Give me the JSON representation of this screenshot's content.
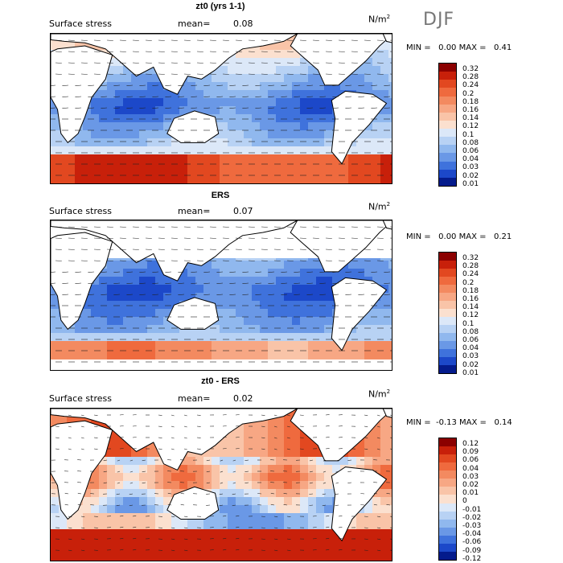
{
  "season": "DJF",
  "panels": [
    {
      "title": "zt0 (yrs 1-1)",
      "field": "Surface stress",
      "mean_label": "mean=",
      "mean": "0.08",
      "units": "N/m",
      "units_exp": "2",
      "minmax": "MIN =   0.00 MAX =   0.41",
      "levels": [
        "0.32",
        "0.28",
        "0.24",
        "0.2",
        "0.18",
        "0.16",
        "0.14",
        "0.12",
        "0.1",
        "0.08",
        "0.06",
        "0.04",
        "0.03",
        "0.02",
        "0.01"
      ],
      "colors": [
        "#8b0000",
        "#c8200a",
        "#e24820",
        "#ef6a3e",
        "#f38a60",
        "#f7a784",
        "#f9c4a8",
        "#fbe0cf",
        "#dce8f8",
        "#b8d2f4",
        "#90b8ee",
        "#6a98e6",
        "#3f72dc",
        "#1c48c9",
        "#041b8c"
      ],
      "style": "abs"
    },
    {
      "title": "ERS",
      "field": "Surface stress",
      "mean_label": "mean=",
      "mean": "0.07",
      "units": "N/m",
      "units_exp": "2",
      "minmax": "MIN =   0.00 MAX =   0.21",
      "levels": [
        "0.32",
        "0.28",
        "0.24",
        "0.2",
        "0.18",
        "0.16",
        "0.14",
        "0.12",
        "0.1",
        "0.08",
        "0.06",
        "0.04",
        "0.03",
        "0.02",
        "0.01"
      ],
      "colors": [
        "#8b0000",
        "#c8200a",
        "#e24820",
        "#ef6a3e",
        "#f38a60",
        "#f7a784",
        "#f9c4a8",
        "#fbe0cf",
        "#dce8f8",
        "#b8d2f4",
        "#90b8ee",
        "#6a98e6",
        "#3f72dc",
        "#1c48c9",
        "#041b8c"
      ],
      "style": "ers"
    },
    {
      "title": "zt0 - ERS",
      "field": "Surface stress",
      "mean_label": "mean=",
      "mean": "0.02",
      "units": "N/m",
      "units_exp": "2",
      "minmax": "MIN =  -0.13 MAX =   0.14",
      "levels": [
        "0.12",
        "0.09",
        "0.06",
        "0.04",
        "0.03",
        "0.02",
        "0.01",
        "0",
        "-0.01",
        "-0.02",
        "-0.03",
        "-0.04",
        "-0.06",
        "-0.09",
        "-0.12"
      ],
      "colors": [
        "#8b0000",
        "#c8200a",
        "#e24820",
        "#ef6a3e",
        "#f38a60",
        "#f7a784",
        "#f9c4a8",
        "#fbe0cf",
        "#dce8f8",
        "#b8d2f4",
        "#90b8ee",
        "#6a98e6",
        "#3f72dc",
        "#1c48c9",
        "#041b8c"
      ],
      "style": "diff"
    }
  ]
}
